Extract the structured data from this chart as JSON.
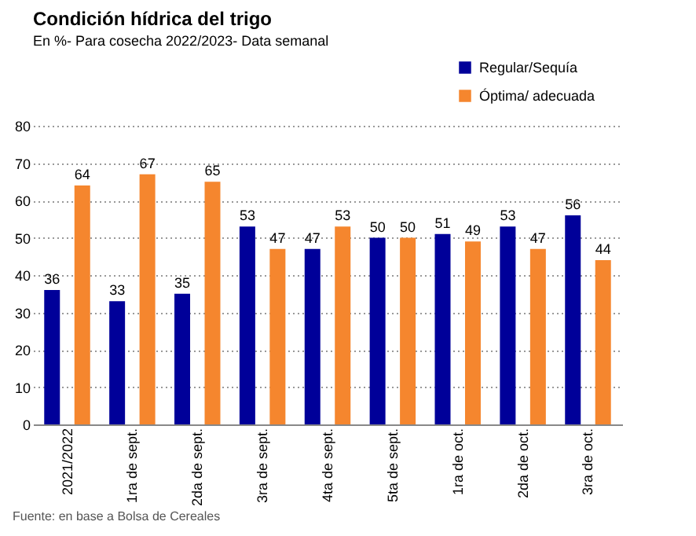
{
  "chart_data": {
    "type": "bar",
    "title": "Condición hídrica del trigo",
    "subtitle": "En %- Para cosecha 2022/2023- Data semanal",
    "categories": [
      "2021/2022",
      "1ra de sept.",
      "2da de sept.",
      "3ra de sept.",
      "4ta de sept.",
      "5ta de sept.",
      "1ra de oct.",
      "2da de oct.",
      "3ra de oct."
    ],
    "series": [
      {
        "name": "Regular/Sequía",
        "color": "#000099",
        "values": [
          36,
          33,
          35,
          53,
          47,
          50,
          51,
          53,
          56
        ]
      },
      {
        "name": "Óptima/ adecuada",
        "color": "#f5862e",
        "values": [
          64,
          67,
          65,
          47,
          53,
          50,
          49,
          47,
          44
        ]
      }
    ],
    "ylim": [
      0,
      80
    ],
    "yticks": [
      0,
      10,
      20,
      30,
      40,
      50,
      60,
      70,
      80
    ],
    "grid": "y",
    "legend": "top right",
    "data_labels": true,
    "annotations": [
      "Fuente: en base a Bolsa de Cereales"
    ]
  }
}
